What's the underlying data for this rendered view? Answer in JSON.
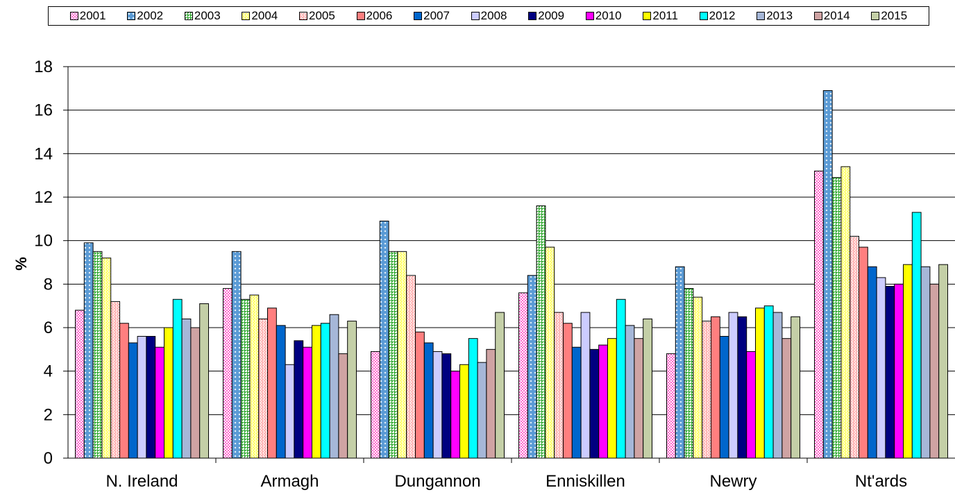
{
  "chart_data": {
    "type": "bar",
    "title": "",
    "xlabel": "",
    "ylabel": "%",
    "ylim": [
      0,
      18
    ],
    "yticks": [
      "0",
      "2",
      "4",
      "6",
      "8",
      "10",
      "12",
      "14",
      "16",
      "18"
    ],
    "grid": true,
    "legend_position": "top",
    "categories": [
      "N. Ireland",
      "Armagh",
      "Dungannon",
      "Enniskillen",
      "Newry",
      "Nt'ards"
    ],
    "series": [
      {
        "name": "2001",
        "color": "#ff66cc",
        "pattern": "checker",
        "values": [
          6.8,
          7.8,
          4.9,
          7.6,
          4.8,
          13.2
        ]
      },
      {
        "name": "2002",
        "color": "#5b9bd5",
        "pattern": "diamond",
        "values": [
          9.9,
          9.5,
          10.9,
          8.4,
          8.8,
          16.9
        ]
      },
      {
        "name": "2003",
        "color": "#33aa33",
        "pattern": "dots",
        "values": [
          9.5,
          7.3,
          9.5,
          11.6,
          7.8,
          12.9
        ]
      },
      {
        "name": "2004",
        "color": "#ffff00",
        "pattern": "dashes",
        "values": [
          9.2,
          7.5,
          9.5,
          9.7,
          7.4,
          13.4
        ]
      },
      {
        "name": "2005",
        "color": "#ff7777",
        "pattern": "dashes",
        "values": [
          7.2,
          6.4,
          8.4,
          6.7,
          6.3,
          10.2
        ]
      },
      {
        "name": "2006",
        "color": "#ff7f7f",
        "pattern": "solid",
        "values": [
          6.2,
          6.9,
          5.8,
          6.2,
          6.5,
          9.7
        ]
      },
      {
        "name": "2007",
        "color": "#0066cc",
        "pattern": "solid",
        "values": [
          5.3,
          6.1,
          5.3,
          5.1,
          5.6,
          8.8
        ]
      },
      {
        "name": "2008",
        "color": "#ccccff",
        "pattern": "solid",
        "values": [
          5.6,
          4.3,
          4.9,
          6.7,
          6.7,
          8.3
        ]
      },
      {
        "name": "2009",
        "color": "#000080",
        "pattern": "solid",
        "values": [
          5.6,
          5.4,
          4.8,
          5.0,
          6.5,
          7.9
        ]
      },
      {
        "name": "2010",
        "color": "#ff00ff",
        "pattern": "solid",
        "values": [
          5.1,
          5.1,
          4.0,
          5.2,
          4.9,
          8.0
        ]
      },
      {
        "name": "2011",
        "color": "#ffff00",
        "pattern": "solid",
        "values": [
          6.0,
          6.1,
          4.3,
          5.5,
          6.9,
          8.9
        ]
      },
      {
        "name": "2012",
        "color": "#00ffff",
        "pattern": "solid",
        "values": [
          7.3,
          6.2,
          5.5,
          7.3,
          7.0,
          11.3
        ]
      },
      {
        "name": "2013",
        "color": "#a6b7d8",
        "pattern": "solid",
        "values": [
          6.4,
          6.6,
          4.4,
          6.1,
          6.7,
          8.8
        ]
      },
      {
        "name": "2014",
        "color": "#cfa3a3",
        "pattern": "solid",
        "values": [
          6.0,
          4.8,
          5.0,
          5.5,
          5.5,
          8.0
        ]
      },
      {
        "name": "2015",
        "color": "#c4cfa7",
        "pattern": "solid",
        "values": [
          7.1,
          6.3,
          6.7,
          6.4,
          6.5,
          8.9
        ]
      }
    ]
  }
}
